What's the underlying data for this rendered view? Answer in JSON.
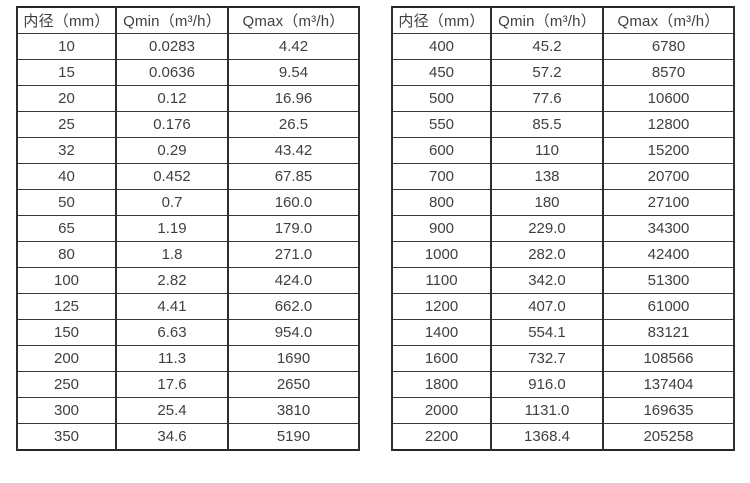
{
  "style": {
    "background": "#ffffff",
    "outer_border_color": "#262626",
    "grid_color": "#3a3a3a",
    "text_color": "#404040"
  },
  "tables": [
    {
      "name": "flow-spec-table-small-diameters",
      "headers": [
        "内径（mm）",
        "Qmin（m³/h）",
        "Qmax（m³/h）"
      ],
      "rows": [
        [
          "10",
          "0.0283",
          "4.42"
        ],
        [
          "15",
          "0.0636",
          "9.54"
        ],
        [
          "20",
          "0.12",
          "16.96"
        ],
        [
          "25",
          "0.176",
          "26.5"
        ],
        [
          "32",
          "0.29",
          "43.42"
        ],
        [
          "40",
          "0.452",
          "67.85"
        ],
        [
          "50",
          "0.7",
          "160.0"
        ],
        [
          "65",
          "1.19",
          "179.0"
        ],
        [
          "80",
          "1.8",
          "271.0"
        ],
        [
          "100",
          "2.82",
          "424.0"
        ],
        [
          "125",
          "4.41",
          "662.0"
        ],
        [
          "150",
          "6.63",
          "954.0"
        ],
        [
          "200",
          "11.3",
          "1690"
        ],
        [
          "250",
          "17.6",
          "2650"
        ],
        [
          "300",
          "25.4",
          "3810"
        ],
        [
          "350",
          "34.6",
          "5190"
        ]
      ]
    },
    {
      "name": "flow-spec-table-large-diameters",
      "headers": [
        "内径（mm）",
        "Qmin（m³/h）",
        "Qmax（m³/h）"
      ],
      "rows": [
        [
          "400",
          "45.2",
          "6780"
        ],
        [
          "450",
          "57.2",
          "8570"
        ],
        [
          "500",
          "77.6",
          "10600"
        ],
        [
          "550",
          "85.5",
          "12800"
        ],
        [
          "600",
          "110",
          "15200"
        ],
        [
          "700",
          "138",
          "20700"
        ],
        [
          "800",
          "180",
          "27100"
        ],
        [
          "900",
          "229.0",
          "34300"
        ],
        [
          "1000",
          "282.0",
          "42400"
        ],
        [
          "1100",
          "342.0",
          "51300"
        ],
        [
          "1200",
          "407.0",
          "61000"
        ],
        [
          "1400",
          "554.1",
          "83121"
        ],
        [
          "1600",
          "732.7",
          "108566"
        ],
        [
          "1800",
          "916.0",
          "137404"
        ],
        [
          "2000",
          "1131.0",
          "169635"
        ],
        [
          "2200",
          "1368.4",
          "205258"
        ]
      ]
    }
  ]
}
